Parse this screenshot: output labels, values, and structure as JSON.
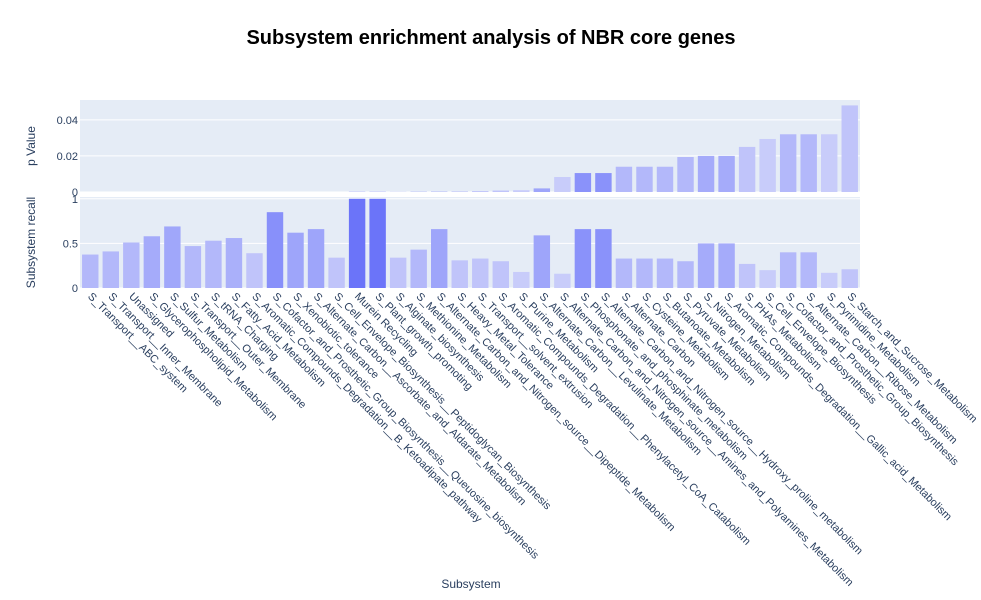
{
  "chart_data": {
    "type": "bar",
    "title": "Subsystem enrichment analysis of NBR core genes",
    "xlabel": "Subsystem",
    "categories": [
      "S_Transport__ABC_system",
      "S_Transport__Inner_Membrane",
      "Unassigned",
      "S_Glycerophospholipid_Metabolism",
      "S_Sulfur_Metabolism",
      "S_Transport__Outer_Membrane",
      "S_tRNA_Charging",
      "S_Fatty_Acid_Metabolism",
      "S_Aromatic_Compounds_Degradation__B_Ketoadipate_pathway",
      "S_Cofactor_and_Prosthetic_Group_Biosynthesis__Queuosine_biosynthesis",
      "S_Xenobiotic_tolerance",
      "S_Alternate_Carbon__Ascorbate_and_Aldarate_Metabolism",
      "S_Cell_Envelope_Biosynthesis__Peptidoglycan_Biosynthesis",
      "Murein Recycling",
      "S_Plant_growth_promoting",
      "S_Alginate_biosynthesis",
      "S_Methionine_Metabolism",
      "S_Alternate_Carbon_and_Nitrogen_source__Dipeptide_Metabolism",
      "S_Heavy_Metal_Tolerance",
      "S_Transport__solvent_extrusion",
      "S_Aromatic_Compounds_Degradation__Phenylacetyl_CoA_Catabolism",
      "S_Purine_Metabolism",
      "S_Alternate_Carbon__Levulinate_Metabolism",
      "S_Alternate_Carbon_and_Nitrogen_source__Amines_and_Polyamines_Metabolism",
      "S_Phosphonate_and_phosphinate_metabolism",
      "S_Alternate_Carbon_and_Nitrogen_source__Hydroxy_proline_metabolism",
      "S_Alternate_Carbon",
      "S_Cysteine_Metabolism",
      "S_Butanoate_Metabolism",
      "S_Pyruvate_Metabolism",
      "S_Nitrogen_Metabolism",
      "S_Aromatic_Compounds_Degradation__Gallic_acid_Metabolism",
      "S_PHAs_Metabolism",
      "S_Cell_Envelope_Biosynthesis",
      "S_Cofactor_and_Prosthetic_Group_Biosynthesis",
      "S_Alternate_Carbon__Ribose_Metabolism",
      "S_Pyrimidine_Metabolism",
      "S_Starch_and_Sucrose_Metabolism"
    ],
    "colors": [
      "#b3b8fa",
      "#b3b8fa",
      "#b3b8fa",
      "#a5abfa",
      "#a0a7fa",
      "#b3b8fa",
      "#b3b8fa",
      "#aab0fa",
      "#c0c4fa",
      "#8890fa",
      "#9ea5fa",
      "#9ea5fa",
      "#c0c4fa",
      "#6b74f9",
      "#6b74f9",
      "#c0c4fa",
      "#b3b8fa",
      "#9ea5fa",
      "#c0c4fa",
      "#c0c4fa",
      "#c0c4fa",
      "#c8ccfa",
      "#9ea5fa",
      "#c8ccfa",
      "#8a92fa",
      "#8a92fa",
      "#b3b8fa",
      "#b3b8fa",
      "#b3b8fa",
      "#b3b8fa",
      "#a5abfa",
      "#a5abfa",
      "#c0c4fa",
      "#c8ccfa",
      "#b3b8fa",
      "#b3b8fa",
      "#c8ccfa",
      "#c0c4fa"
    ],
    "panels": [
      {
        "ylabel": "p Value",
        "ylim": [
          0,
          0.051
        ],
        "yticks": [
          0,
          0.02,
          0.04
        ],
        "grid": true,
        "values": [
          0,
          0,
          0,
          0,
          0,
          0,
          0,
          0,
          0,
          0,
          0,
          0,
          0,
          0.0001,
          0.0001,
          0.0001,
          0.0002,
          0.0002,
          0.0003,
          0.0005,
          0.0008,
          0.001,
          0.002,
          0.0083,
          0.0105,
          0.0105,
          0.014,
          0.014,
          0.014,
          0.0194,
          0.02,
          0.02,
          0.025,
          0.0294,
          0.032,
          0.032,
          0.032,
          0.048
        ]
      },
      {
        "ylabel": "Subsystem recall",
        "ylim": [
          0,
          1.02
        ],
        "yticks": [
          0,
          0.5,
          1
        ],
        "grid": true,
        "values": [
          0.375,
          0.41,
          0.51,
          0.58,
          0.69,
          0.47,
          0.53,
          0.56,
          0.39,
          0.85,
          0.62,
          0.66,
          0.34,
          1,
          1,
          0.34,
          0.43,
          0.66,
          0.31,
          0.33,
          0.3,
          0.18,
          0.59,
          0.16,
          0.66,
          0.66,
          0.33,
          0.33,
          0.33,
          0.3,
          0.5,
          0.5,
          0.27,
          0.2,
          0.4,
          0.4,
          0.17,
          0.21
        ]
      }
    ]
  }
}
